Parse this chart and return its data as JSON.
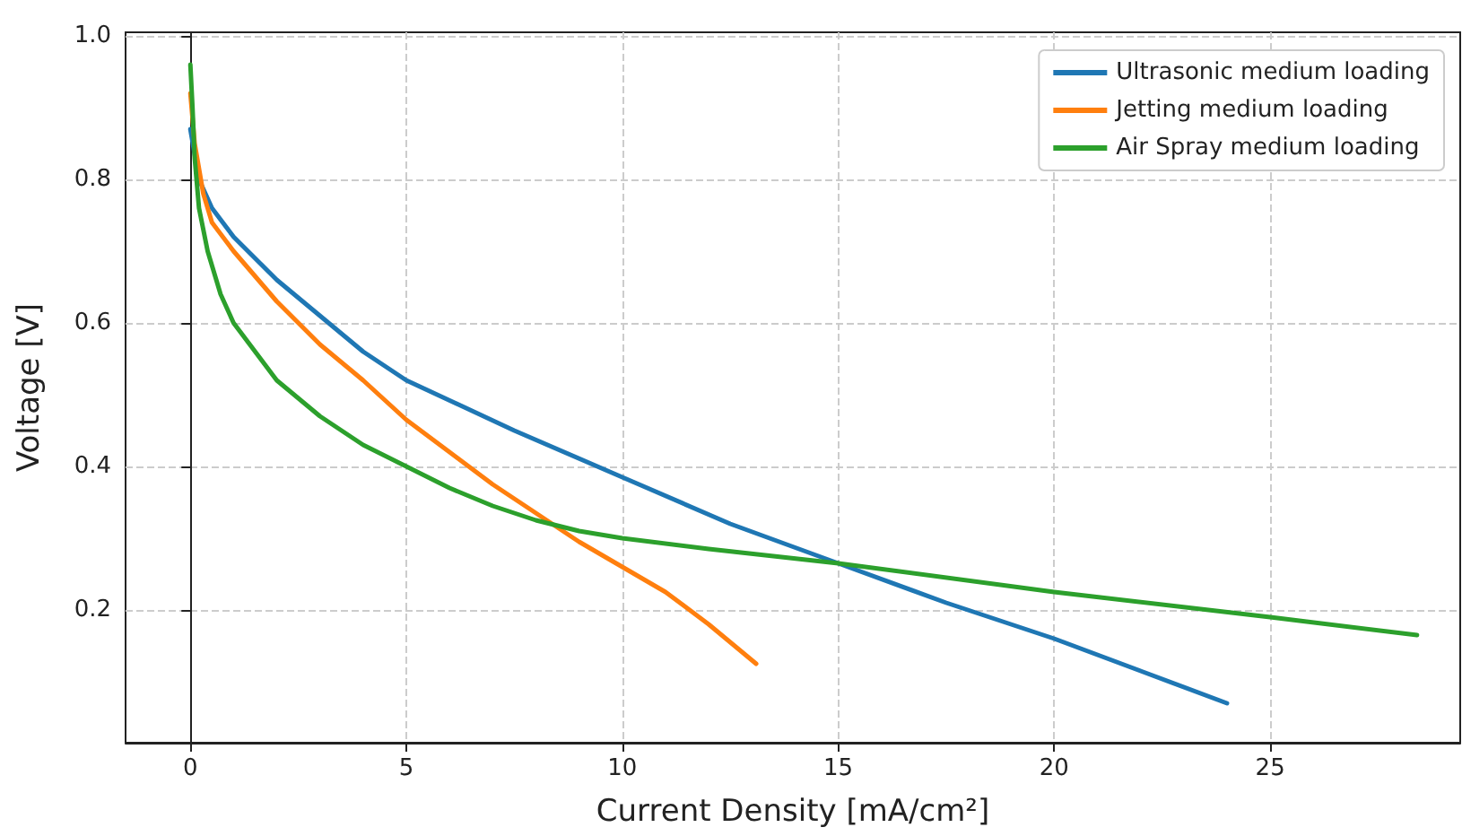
{
  "chart_data": {
    "type": "line",
    "xlabel": "Current Density [mA/cm²]",
    "ylabel": "Voltage [V]",
    "xlim": [
      -1.5,
      29.4
    ],
    "ylim": [
      0.015,
      1.005
    ],
    "xticks": [
      0,
      5,
      10,
      15,
      20,
      25
    ],
    "yticks": [
      {
        "value": 0.2,
        "label": "0.2"
      },
      {
        "value": 0.4,
        "label": "0.4"
      },
      {
        "value": 0.6,
        "label": "0.6"
      },
      {
        "value": 0.8,
        "label": "0.8"
      },
      {
        "value": 1.0,
        "label": "1.0"
      }
    ],
    "grid": true,
    "legend": "top right",
    "marker": "none",
    "line_style": "solid",
    "series": [
      {
        "name": "Ultrasonic medium loading",
        "color": "#1f77b4",
        "x": [
          0,
          0.2,
          0.5,
          1,
          2,
          3,
          4,
          5,
          7.5,
          10,
          12.5,
          15,
          17.5,
          20,
          22,
          24
        ],
        "values": [
          0.87,
          0.8,
          0.76,
          0.72,
          0.66,
          0.61,
          0.56,
          0.52,
          0.45,
          0.385,
          0.32,
          0.265,
          0.21,
          0.16,
          0.115,
          0.07
        ]
      },
      {
        "name": "Jetting medium loading",
        "color": "#ff7f0e",
        "x": [
          0,
          0.1,
          0.3,
          0.5,
          1,
          2,
          3,
          4,
          5,
          6,
          7,
          8,
          9,
          10,
          11,
          12,
          13.1
        ],
        "values": [
          0.92,
          0.85,
          0.78,
          0.74,
          0.7,
          0.63,
          0.57,
          0.52,
          0.465,
          0.42,
          0.375,
          0.335,
          0.295,
          0.26,
          0.225,
          0.18,
          0.125
        ]
      },
      {
        "name": "Air Spray medium loading",
        "color": "#2ca02c",
        "x": [
          0,
          0.05,
          0.1,
          0.2,
          0.4,
          0.7,
          1,
          1.5,
          2,
          3,
          4,
          5,
          6,
          7,
          8,
          9,
          10,
          12,
          15,
          20,
          25,
          28.4
        ],
        "values": [
          0.96,
          0.9,
          0.83,
          0.76,
          0.7,
          0.64,
          0.6,
          0.56,
          0.52,
          0.47,
          0.43,
          0.4,
          0.37,
          0.345,
          0.325,
          0.31,
          0.3,
          0.285,
          0.265,
          0.225,
          0.19,
          0.165
        ]
      }
    ]
  }
}
